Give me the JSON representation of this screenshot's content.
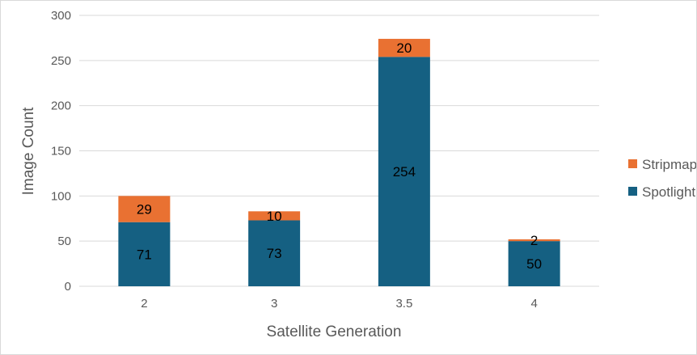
{
  "chart_data": {
    "type": "bar",
    "stacked": true,
    "categories": [
      "2",
      "3",
      "3.5",
      "4"
    ],
    "series": [
      {
        "name": "Spotlight",
        "values": [
          71,
          73,
          254,
          50
        ],
        "color": "#156082"
      },
      {
        "name": "Stripmap",
        "values": [
          29,
          10,
          20,
          2
        ],
        "color": "#E97132"
      }
    ],
    "title": "",
    "xlabel": "Satellite Generation",
    "ylabel": "Image Count",
    "ylim": [
      0,
      300
    ],
    "yticks": [
      0,
      50,
      100,
      150,
      200,
      250,
      300
    ],
    "grid": true,
    "legend": "right",
    "data_labels": true
  }
}
